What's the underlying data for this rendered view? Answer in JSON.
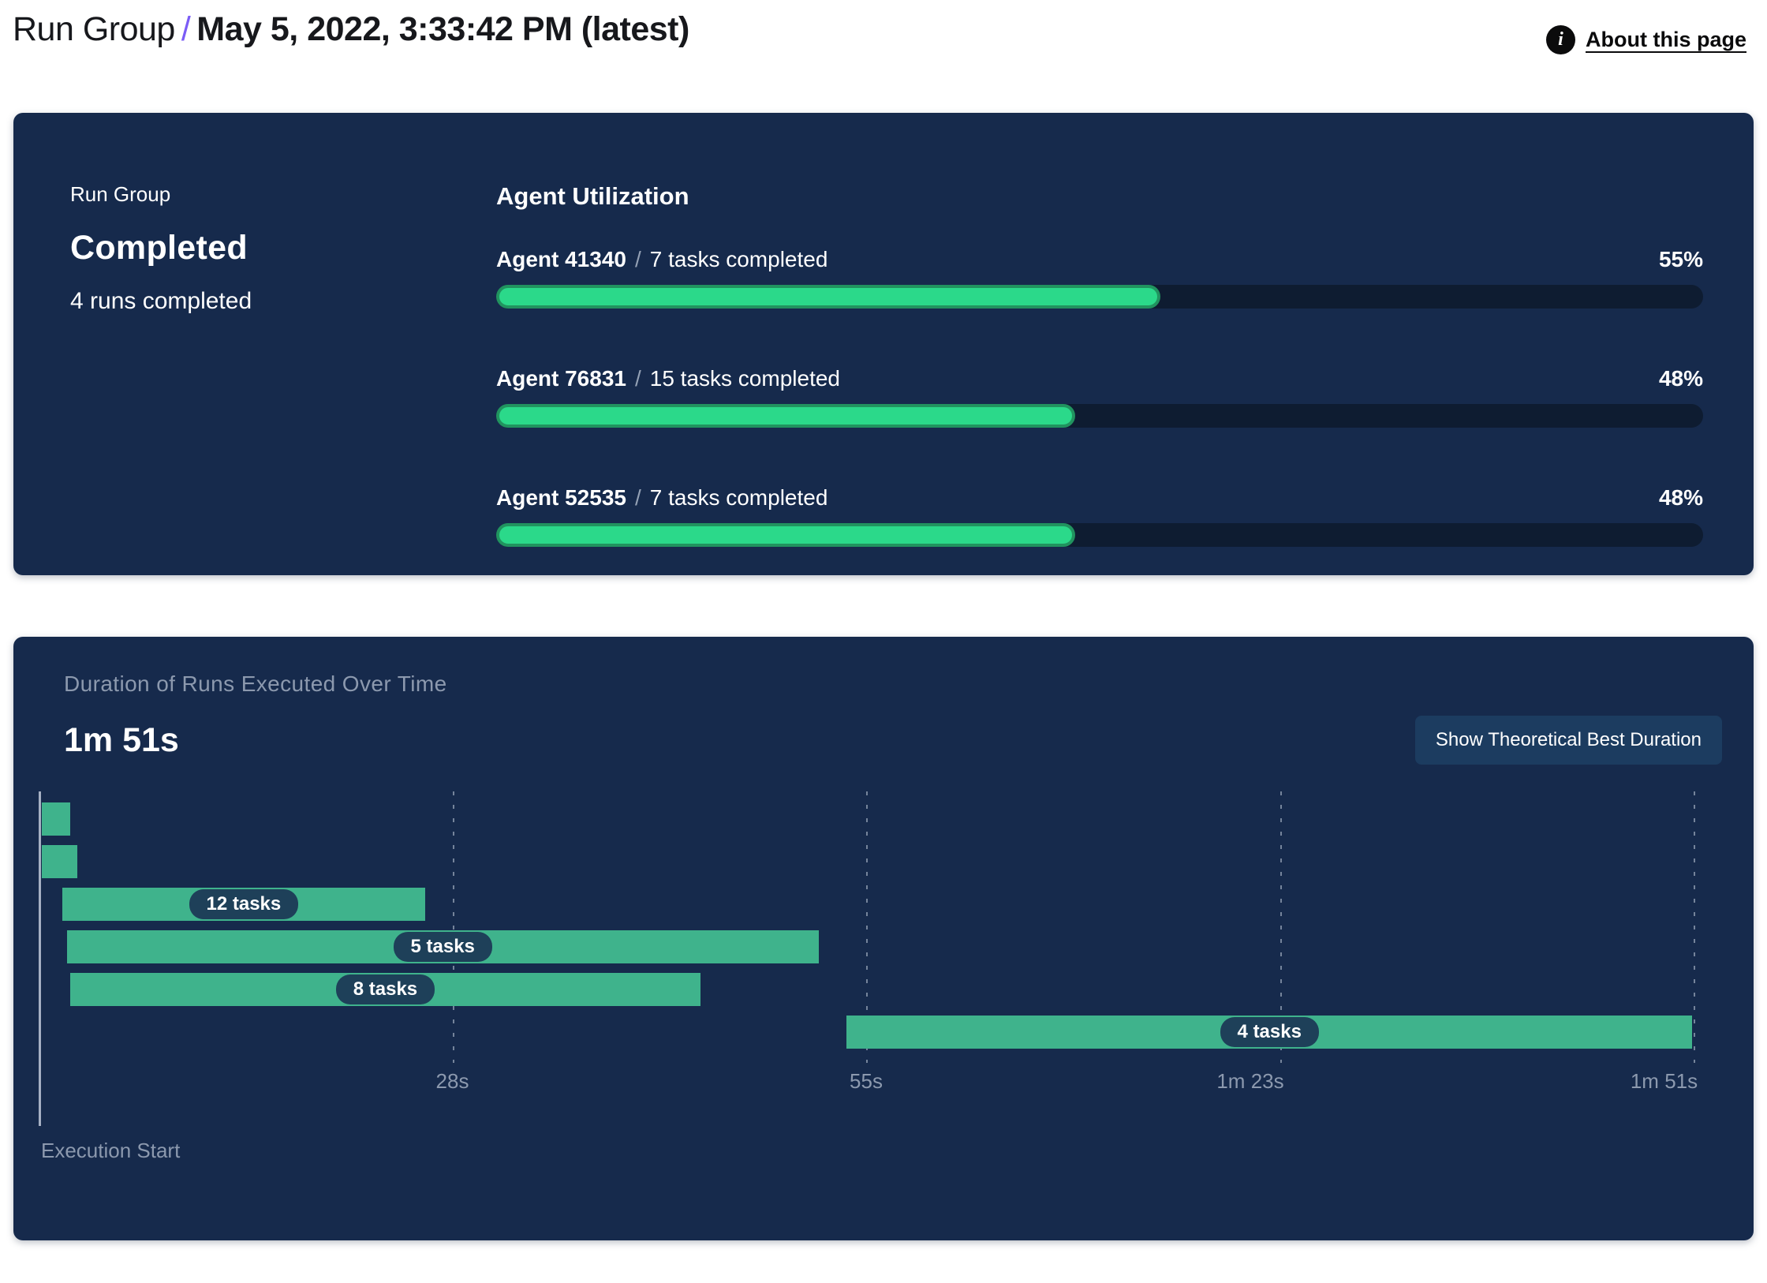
{
  "header": {
    "breadcrumb_root": "Run Group",
    "breadcrumb_separator": "/",
    "title": "May 5, 2022, 3:33:42 PM (latest)",
    "about_link_label": "About this page",
    "info_icon_glyph": "i"
  },
  "summary_panel": {
    "label": "Run Group",
    "status": "Completed",
    "runs_completed": "4 runs completed",
    "utilization_title": "Agent Utilization",
    "agents": [
      {
        "name": "Agent 41340",
        "separator": "/",
        "tasks": "7 tasks completed",
        "percent": 55,
        "percent_label": "55%"
      },
      {
        "name": "Agent 76831",
        "separator": "/",
        "tasks": "15 tasks completed",
        "percent": 48,
        "percent_label": "48%"
      },
      {
        "name": "Agent 52535",
        "separator": "/",
        "tasks": "7 tasks completed",
        "percent": 48,
        "percent_label": "48%"
      }
    ]
  },
  "duration_panel": {
    "title": "Duration of Runs Executed Over Time",
    "total_duration": "1m 51s",
    "button_label": "Show Theoretical Best Duration",
    "execution_start_label": "Execution Start"
  },
  "chart_data": {
    "type": "gantt",
    "title": "Duration of Runs Executed Over Time",
    "total_duration_label": "1m 51s",
    "total_duration_seconds": 111,
    "xlabel": "Execution Start",
    "grid": "dashed-vertical",
    "x_ticks": [
      {
        "label": "28s",
        "seconds": 27.75
      },
      {
        "label": "55s",
        "seconds": 55.5
      },
      {
        "label": "1m 23s",
        "seconds": 83.25
      },
      {
        "label": "1m 51s",
        "seconds": 111
      }
    ],
    "runs": [
      {
        "label": "",
        "tasks": null,
        "start_s": 0.2,
        "end_s": 2.1
      },
      {
        "label": "",
        "tasks": null,
        "start_s": 0.2,
        "end_s": 2.6
      },
      {
        "label": "12 tasks",
        "tasks": 12,
        "start_s": 1.6,
        "end_s": 25.9
      },
      {
        "label": "5 tasks",
        "tasks": 5,
        "start_s": 1.9,
        "end_s": 52.3
      },
      {
        "label": "8 tasks",
        "tasks": 8,
        "start_s": 2.1,
        "end_s": 44.4
      },
      {
        "label": "4 tasks",
        "tasks": 4,
        "start_s": 54.2,
        "end_s": 110.9
      }
    ],
    "colors": {
      "panel_bg": "#162a4c",
      "bar_green": "#3fb38c",
      "progress_green": "#2bd98a",
      "progress_ring": "#21935f",
      "track_dark": "#0e1c31",
      "pill_bg": "#1e4059",
      "muted_text": "#8c99ae",
      "accent_purple": "#7b5cf6"
    }
  }
}
